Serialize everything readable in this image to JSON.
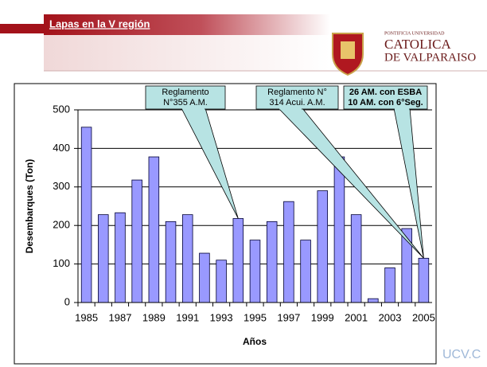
{
  "slide": {
    "title": "Lapas en la V región",
    "logo_lines": [
      "PONTIFICIA UNIVERSIDAD",
      "CATOLICA",
      "DE VALPARAISO"
    ],
    "watermark": "UCV.C"
  },
  "chart_data": {
    "type": "bar",
    "categories": [
      "1985",
      null,
      "1987",
      null,
      "1989",
      null,
      "1991",
      null,
      "1993",
      null,
      "1995",
      null,
      "1997",
      null,
      "1999",
      null,
      "2001",
      null,
      "2003",
      null,
      "2005"
    ],
    "values": [
      455,
      228,
      233,
      318,
      378,
      210,
      228,
      128,
      110,
      218,
      162,
      210,
      262,
      162,
      290,
      378,
      228,
      10,
      90,
      192,
      115
    ],
    "color": "#9999ff",
    "ylim": [
      0,
      500
    ],
    "yticks": [
      0,
      100,
      200,
      300,
      400,
      500
    ],
    "grid": true,
    "xlabel": "Años",
    "ylabel": "Desembarques (Ton)",
    "annotations": [
      {
        "lines": [
          "Reglamento",
          "N°355 A.M."
        ]
      },
      {
        "lines": [
          "Reglamento N°",
          "314 Acui. A.M."
        ]
      },
      {
        "lines": [
          "26 AM. con ESBA",
          "10 AM. con 6°Seg."
        ]
      }
    ]
  }
}
